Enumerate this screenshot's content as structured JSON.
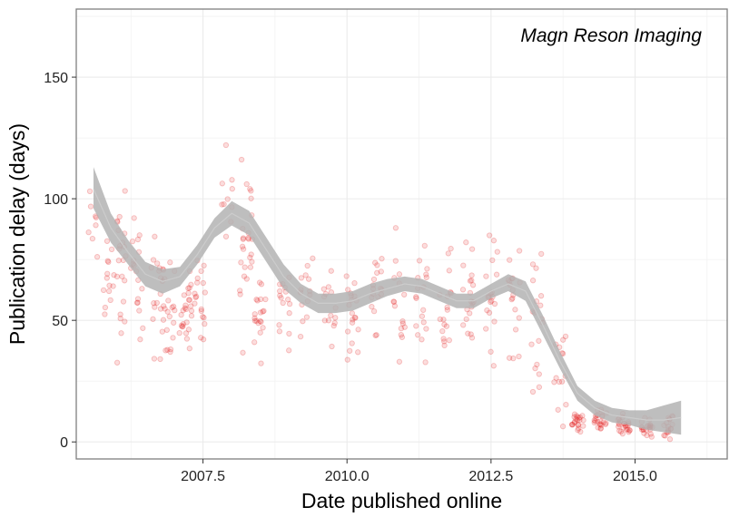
{
  "chart_data": {
    "type": "scatter",
    "annotation": "Magn Reson Imaging",
    "xlabel": "Date published online",
    "ylabel": "Publication delay (days)",
    "xlim": [
      2005.3,
      2016.6
    ],
    "ylim": [
      -7,
      178
    ],
    "x_ticks": [
      {
        "value": 2007.5,
        "label": "2007.5"
      },
      {
        "value": 2010.0,
        "label": "2010.0"
      },
      {
        "value": 2012.5,
        "label": "2012.5"
      },
      {
        "value": 2015.0,
        "label": "2015.0"
      }
    ],
    "y_ticks": [
      {
        "value": 0,
        "label": "0"
      },
      {
        "value": 50,
        "label": "50"
      },
      {
        "value": 100,
        "label": "100"
      },
      {
        "value": 150,
        "label": "150"
      }
    ],
    "grid": true,
    "point_color": "#e31a1c",
    "point_opacity": 0.15,
    "smooth_ribbon_color": "#b3b3b3",
    "smooth_line_color": "#cccccc",
    "smooth_curve": {
      "x": [
        2005.6,
        2005.9,
        2006.2,
        2006.5,
        2006.8,
        2007.1,
        2007.4,
        2007.7,
        2008.0,
        2008.3,
        2008.6,
        2008.9,
        2009.2,
        2009.5,
        2009.8,
        2010.1,
        2010.4,
        2010.7,
        2011.0,
        2011.3,
        2011.6,
        2011.9,
        2012.2,
        2012.5,
        2012.8,
        2013.1,
        2013.4,
        2013.7,
        2014.0,
        2014.3,
        2014.6,
        2014.9,
        2015.2,
        2015.5,
        2015.8
      ],
      "y": [
        104,
        88,
        78,
        69,
        66,
        68,
        77,
        88,
        94,
        90,
        79,
        68,
        61,
        57,
        57,
        58,
        61,
        63,
        65,
        64,
        61,
        58,
        58,
        62,
        65,
        62,
        48,
        33,
        20,
        14,
        11,
        10,
        9,
        9,
        10
      ],
      "lower": [
        96,
        82,
        73,
        64,
        61,
        64,
        73,
        84,
        89,
        85,
        74,
        63,
        57,
        53,
        53,
        54,
        57,
        60,
        62,
        61,
        58,
        55,
        55,
        59,
        62,
        58,
        44,
        30,
        17,
        11,
        8,
        7,
        5,
        4,
        3
      ],
      "upper": [
        113,
        94,
        83,
        74,
        71,
        72,
        81,
        92,
        99,
        95,
        84,
        73,
        65,
        61,
        61,
        62,
        65,
        67,
        68,
        67,
        64,
        61,
        61,
        65,
        69,
        66,
        52,
        37,
        23,
        17,
        14,
        13,
        13,
        15,
        17
      ]
    },
    "clusters": [
      {
        "x": 2005.6,
        "n": 8,
        "median": 85,
        "spread": 20
      },
      {
        "x": 2005.85,
        "n": 14,
        "median": 70,
        "spread": 28
      },
      {
        "x": 2006.1,
        "n": 22,
        "median": 68,
        "spread": 35
      },
      {
        "x": 2006.35,
        "n": 18,
        "median": 65,
        "spread": 30
      },
      {
        "x": 2006.7,
        "n": 16,
        "median": 62,
        "spread": 30
      },
      {
        "x": 2006.9,
        "n": 22,
        "median": 55,
        "spread": 20
      },
      {
        "x": 2007.2,
        "n": 26,
        "median": 55,
        "spread": 18
      },
      {
        "x": 2007.45,
        "n": 18,
        "median": 58,
        "spread": 20
      },
      {
        "x": 2007.9,
        "n": 10,
        "median": 95,
        "spread": 25
      },
      {
        "x": 2008.25,
        "n": 26,
        "median": 80,
        "spread": 40
      },
      {
        "x": 2008.5,
        "n": 20,
        "median": 55,
        "spread": 20
      },
      {
        "x": 2008.9,
        "n": 16,
        "median": 58,
        "spread": 20
      },
      {
        "x": 2009.3,
        "n": 14,
        "median": 60,
        "spread": 18
      },
      {
        "x": 2009.7,
        "n": 14,
        "median": 55,
        "spread": 20
      },
      {
        "x": 2010.1,
        "n": 20,
        "median": 52,
        "spread": 22
      },
      {
        "x": 2010.5,
        "n": 18,
        "median": 60,
        "spread": 22
      },
      {
        "x": 2010.9,
        "n": 16,
        "median": 62,
        "spread": 25
      },
      {
        "x": 2011.3,
        "n": 18,
        "median": 60,
        "spread": 25
      },
      {
        "x": 2011.7,
        "n": 18,
        "median": 58,
        "spread": 25
      },
      {
        "x": 2012.1,
        "n": 20,
        "median": 58,
        "spread": 28
      },
      {
        "x": 2012.5,
        "n": 20,
        "median": 60,
        "spread": 28
      },
      {
        "x": 2012.9,
        "n": 18,
        "median": 62,
        "spread": 28
      },
      {
        "x": 2013.3,
        "n": 18,
        "median": 48,
        "spread": 28
      },
      {
        "x": 2013.7,
        "n": 14,
        "median": 30,
        "spread": 25
      },
      {
        "x": 2014.0,
        "n": 22,
        "median": 9,
        "spread": 5
      },
      {
        "x": 2014.4,
        "n": 24,
        "median": 8,
        "spread": 5
      },
      {
        "x": 2014.8,
        "n": 24,
        "median": 7,
        "spread": 5
      },
      {
        "x": 2015.2,
        "n": 22,
        "median": 6,
        "spread": 4
      },
      {
        "x": 2015.6,
        "n": 18,
        "median": 6,
        "spread": 5
      }
    ]
  }
}
